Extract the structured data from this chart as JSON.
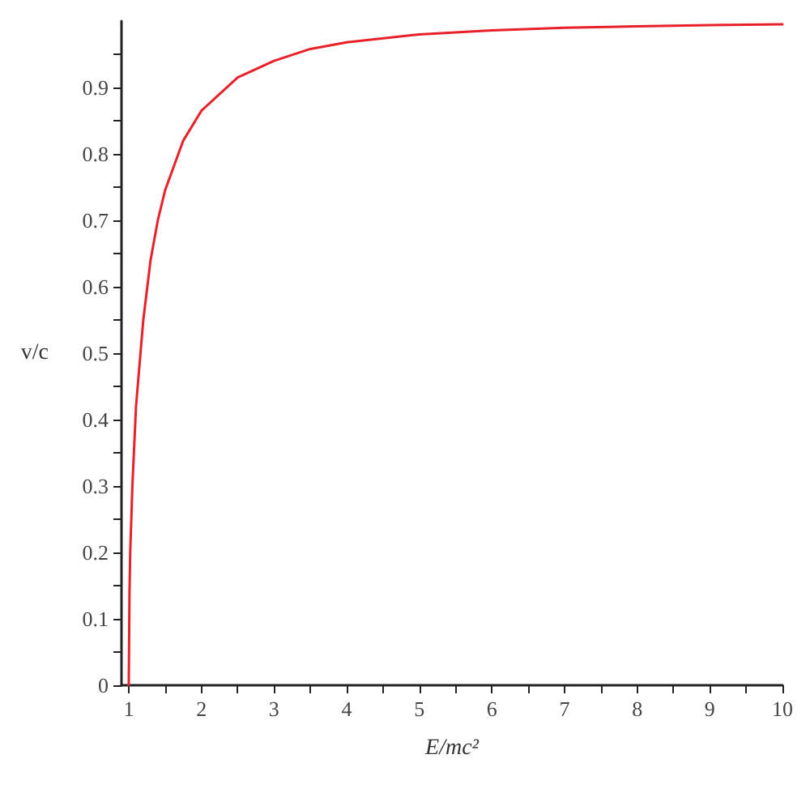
{
  "chart_data": {
    "type": "line",
    "xlabel": "E/mc²",
    "ylabel": "v/c",
    "x": [
      1,
      1.01,
      1.02,
      1.05,
      1.1,
      1.2,
      1.3,
      1.4,
      1.5,
      1.75,
      2,
      2.5,
      3,
      3.5,
      4,
      5,
      6,
      7,
      8,
      9,
      10
    ],
    "series": [
      {
        "color": "#e8202a",
        "values": [
          0,
          0.14,
          0.2,
          0.3,
          0.42,
          0.55,
          0.64,
          0.7,
          0.745,
          0.82,
          0.865,
          0.915,
          0.94,
          0.958,
          0.968,
          0.98,
          0.986,
          0.99,
          0.992,
          0.994,
          0.995
        ]
      }
    ],
    "xlim": [
      0.9,
      10
    ],
    "ylim": [
      0,
      1
    ],
    "xticks": [
      1,
      {
        "value": 1.5,
        "label": null
      },
      2,
      {
        "value": 2.5,
        "label": null
      },
      3,
      {
        "value": 3.5,
        "label": null
      },
      4,
      {
        "value": 4.5,
        "label": null
      },
      5,
      {
        "value": 5.5,
        "label": null
      },
      6,
      {
        "value": 6.5,
        "label": null
      },
      7,
      {
        "value": 7.5,
        "label": null
      },
      8,
      {
        "value": 8.5,
        "label": null
      },
      9,
      {
        "value": 9.5,
        "label": null
      },
      10
    ],
    "yticks": [
      0,
      {
        "value": 0.05,
        "label": null
      },
      0.1,
      {
        "value": 0.15,
        "label": null
      },
      0.2,
      {
        "value": 0.25,
        "label": null
      },
      0.3,
      {
        "value": 0.35,
        "label": null
      },
      0.4,
      {
        "value": 0.45,
        "label": null
      },
      0.5,
      {
        "value": 0.55,
        "label": null
      },
      0.6,
      {
        "value": 0.65,
        "label": null
      },
      0.7,
      {
        "value": 0.75,
        "label": null
      },
      0.8,
      {
        "value": 0.85,
        "label": null
      },
      0.9,
      {
        "value": 0.95,
        "label": null
      }
    ],
    "marker": "none",
    "line_style": "solid"
  }
}
